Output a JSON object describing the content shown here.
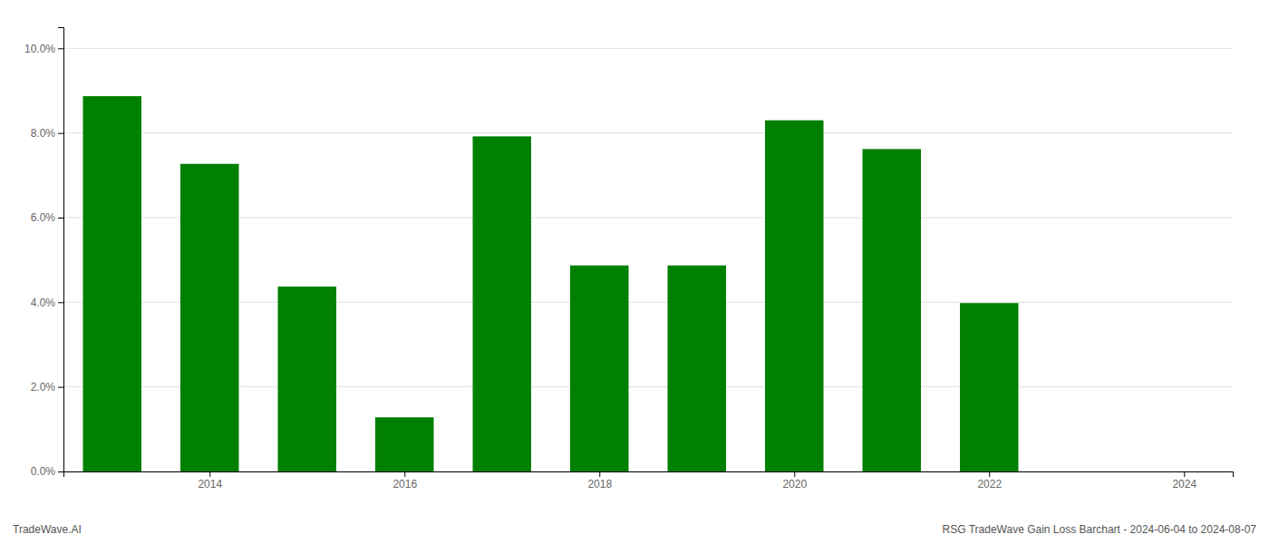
{
  "chart_data": {
    "type": "bar",
    "x": [
      2013,
      2014,
      2015,
      2016,
      2017,
      2018,
      2019,
      2020,
      2021,
      2022
    ],
    "values": [
      0.0887,
      0.0727,
      0.0437,
      0.0128,
      0.0792,
      0.0487,
      0.0487,
      0.083,
      0.0762,
      0.0398
    ],
    "color": "#008000",
    "xlim": [
      2012.5,
      2024.5
    ],
    "xticks": [
      2014,
      2016,
      2018,
      2020,
      2022,
      2024
    ],
    "ylim": [
      0,
      0.105
    ],
    "yticks": [
      {
        "value": 0.0,
        "label": "0.0%"
      },
      {
        "value": 0.02,
        "label": "2.0%"
      },
      {
        "value": 0.04,
        "label": "4.0%"
      },
      {
        "value": 0.06,
        "label": "6.0%"
      },
      {
        "value": 0.08,
        "label": "8.0%"
      },
      {
        "value": 0.1,
        "label": "10.0%"
      }
    ],
    "grid": true,
    "annotations": [
      "TradeWave.AI",
      "RSG TradeWave Gain Loss Barchart - 2024-06-04 to 2024-08-07"
    ]
  }
}
